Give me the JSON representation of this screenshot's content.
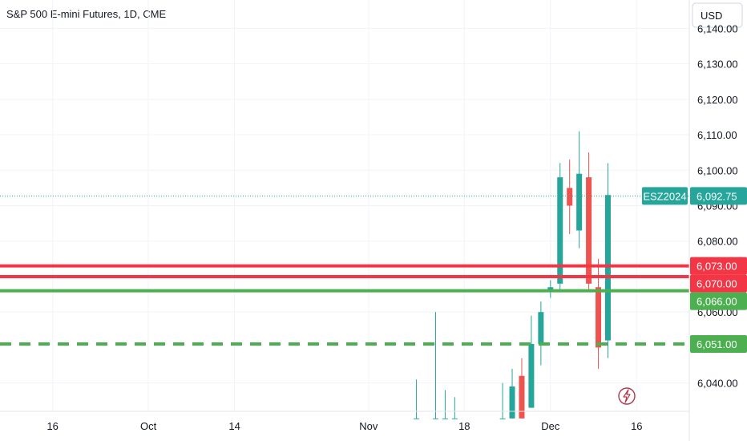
{
  "header": {
    "title": "S&P 500 E-mini Futures, 1D, CME"
  },
  "price_axis": {
    "currency": "USD"
  },
  "colors": {
    "up": "#26a69a",
    "down": "#ef5350",
    "red_line": "#f23645",
    "green_line": "#4caf50",
    "grid": "#f0f3fa"
  },
  "icons": {
    "flash": "lightning-icon"
  },
  "chart_data": {
    "type": "candlestick",
    "title": "S&P 500 E-mini Futures, 1D, CME",
    "ylabel": "USD",
    "ylim": [
      6032,
      6148
    ],
    "y_ticks": [
      {
        "value": 6140,
        "label": "6,140.00"
      },
      {
        "value": 6130,
        "label": "6,130.00"
      },
      {
        "value": 6120,
        "label": "6,120.00"
      },
      {
        "value": 6110,
        "label": "6,110.00"
      },
      {
        "value": 6100,
        "label": "6,100.00"
      },
      {
        "value": 6090,
        "label": "6,090.00"
      },
      {
        "value": 6080,
        "label": "6,080.00"
      },
      {
        "value": 6060,
        "label": "6,060.00"
      },
      {
        "value": 6040,
        "label": "6,040.00"
      }
    ],
    "x_ticks": [
      {
        "label": "16",
        "index": 0
      },
      {
        "label": "Oct",
        "index": 10
      },
      {
        "label": "14",
        "index": 19
      },
      {
        "label": "Nov",
        "index": 33
      },
      {
        "label": "18",
        "index": 43
      },
      {
        "label": "Dec",
        "index": 52
      },
      {
        "label": "16",
        "index": 61
      }
    ],
    "x_range": [
      -5.5,
      66.5
    ],
    "candles": [
      {
        "i": 38,
        "o": 6030,
        "h": 6041,
        "l": 6030,
        "c": 6030
      },
      {
        "i": 40,
        "o": 6030,
        "h": 6060,
        "l": 6030,
        "c": 6030
      },
      {
        "i": 41,
        "o": 6030,
        "h": 6038,
        "l": 6030,
        "c": 6030
      },
      {
        "i": 42,
        "o": 6030,
        "h": 6036,
        "l": 6030,
        "c": 6030
      },
      {
        "i": 47,
        "o": 6030,
        "h": 6040,
        "l": 6030,
        "c": 6030
      },
      {
        "i": 48,
        "o": 6030,
        "h": 6044,
        "l": 6030,
        "c": 6039
      },
      {
        "i": 49,
        "o": 6042,
        "h": 6047,
        "l": 6030,
        "c": 6030
      },
      {
        "i": 50,
        "o": 6033,
        "h": 6059,
        "l": 6033,
        "c": 6051
      },
      {
        "i": 51,
        "o": 6051,
        "h": 6063,
        "l": 6045,
        "c": 6060
      },
      {
        "i": 52,
        "o": 6066,
        "h": 6069,
        "l": 6064,
        "c": 6067
      },
      {
        "i": 53,
        "o": 6068,
        "h": 6102,
        "l": 6066,
        "c": 6098
      },
      {
        "i": 54,
        "o": 6095,
        "h": 6103,
        "l": 6082,
        "c": 6090
      },
      {
        "i": 55,
        "o": 6083,
        "h": 6111,
        "l": 6078,
        "c": 6099
      },
      {
        "i": 56,
        "o": 6098,
        "h": 6105,
        "l": 6066,
        "c": 6068
      },
      {
        "i": 57,
        "o": 6067,
        "h": 6075,
        "l": 6044,
        "c": 6050
      },
      {
        "i": 58,
        "o": 6052,
        "h": 6102,
        "l": 6047,
        "c": 6093
      }
    ],
    "lines": [
      {
        "value": 6073,
        "label": "6,073.00",
        "color": "#f23645",
        "style": "solid"
      },
      {
        "value": 6070,
        "label": "6,070.00",
        "color": "#f23645",
        "style": "solid"
      },
      {
        "value": 6066,
        "label": "6,066.00",
        "color": "#4caf50",
        "style": "solid"
      },
      {
        "value": 6051,
        "label": "6,051.00",
        "color": "#4caf50",
        "style": "dashed"
      }
    ],
    "last_price": {
      "value": 6092.75,
      "label": "6,092.75",
      "symbol": "ESZ2024",
      "color": "#26a69a"
    }
  }
}
